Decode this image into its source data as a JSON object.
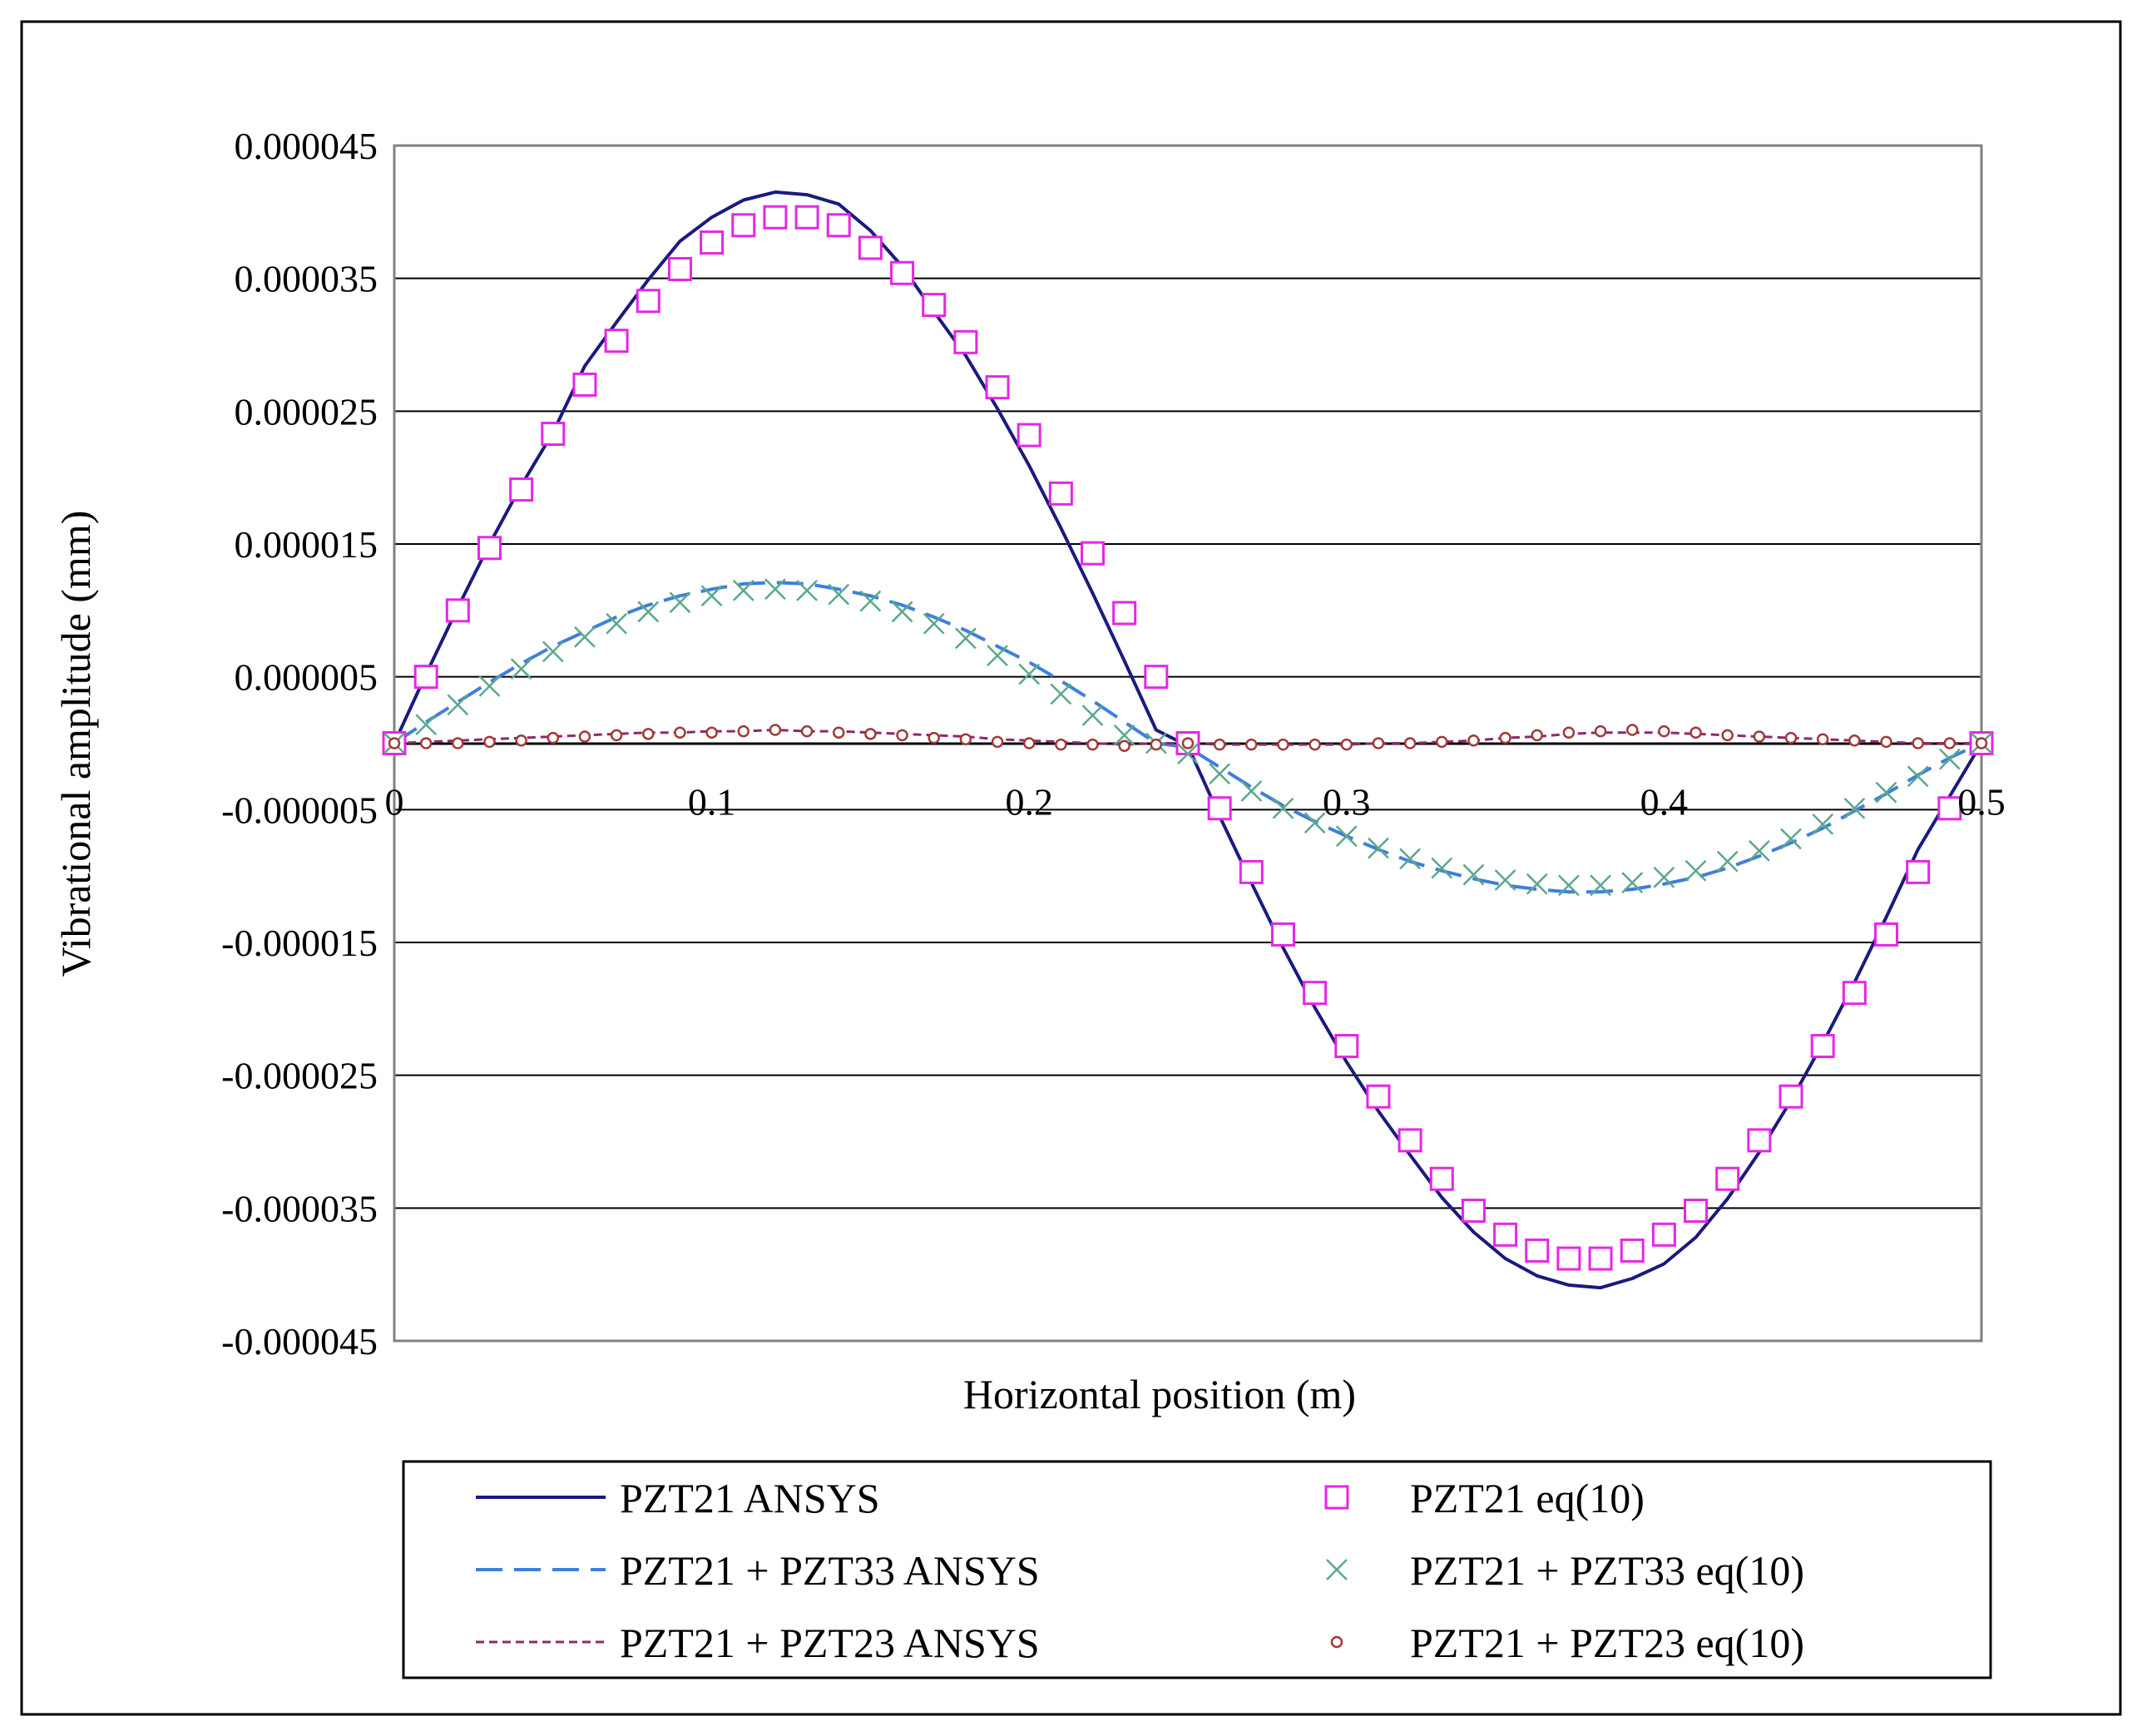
{
  "chart_data": {
    "type": "line",
    "title": "",
    "xlabel": "Horizontal position (m)",
    "ylabel": "Vibrational amplitude (mm)",
    "xlim": [
      0,
      0.5
    ],
    "ylim": [
      -4.5e-05,
      4.5e-05
    ],
    "x_ticks": [
      {
        "value": 0,
        "label": "0"
      },
      {
        "value": 0.1,
        "label": "0.1"
      },
      {
        "value": 0.2,
        "label": "0.2"
      },
      {
        "value": 0.3,
        "label": "0.3"
      },
      {
        "value": 0.4,
        "label": "0.4"
      },
      {
        "value": 0.5,
        "label": "0.5"
      }
    ],
    "y_ticks": [
      {
        "value": 4.5e-05,
        "label": "0.000045"
      },
      {
        "value": 3.5e-05,
        "label": "0.000035"
      },
      {
        "value": 2.5e-05,
        "label": "0.000025"
      },
      {
        "value": 1.5e-05,
        "label": "0.000015"
      },
      {
        "value": 5e-06,
        "label": "0.000005"
      },
      {
        "value": -5e-06,
        "label": "-0.000005"
      },
      {
        "value": -1.5e-05,
        "label": "-0.000015"
      },
      {
        "value": -2.5e-05,
        "label": "-0.000025"
      },
      {
        "value": -3.5e-05,
        "label": "-0.000035"
      },
      {
        "value": -4.5e-05,
        "label": "-0.000045"
      }
    ],
    "grid": "horizontal",
    "legend_position": "bottom",
    "x": [
      0,
      0.01,
      0.02,
      0.03,
      0.04,
      0.05,
      0.06,
      0.07,
      0.08,
      0.09,
      0.1,
      0.11,
      0.12,
      0.13,
      0.14,
      0.15,
      0.16,
      0.17,
      0.18,
      0.19,
      0.2,
      0.21,
      0.22,
      0.23,
      0.24,
      0.25,
      0.26,
      0.27,
      0.28,
      0.29,
      0.3,
      0.31,
      0.32,
      0.33,
      0.34,
      0.35,
      0.36,
      0.37,
      0.38,
      0.39,
      0.4,
      0.41,
      0.42,
      0.43,
      0.44,
      0.45,
      0.46,
      0.47,
      0.48,
      0.49,
      0.5
    ],
    "series": [
      {
        "name": "PZT21 ANSYS",
        "kind": "line",
        "style": "solid",
        "color": "#1a1a7e",
        "values": [
          0,
          5.2e-06,
          1.02e-05,
          1.5e-05,
          1.94e-05,
          2.34e-05,
          2.84e-05,
          3.17e-05,
          3.49e-05,
          3.78e-05,
          3.96e-05,
          4.09e-05,
          4.15e-05,
          4.13e-05,
          4.06e-05,
          3.86e-05,
          3.59e-05,
          3.25e-05,
          2.92e-05,
          2.52e-05,
          2.09e-05,
          1.62e-05,
          1.13e-05,
          6.2e-06,
          1e-06,
          -2e-07,
          -5.5e-06,
          -1.05e-05,
          -1.54e-05,
          -1.99e-05,
          -2.4e-05,
          -2.77e-05,
          -3.1e-05,
          -3.42e-05,
          -3.68e-05,
          -3.88e-05,
          -4.01e-05,
          -4.08e-05,
          -4.1e-05,
          -4.03e-05,
          -3.92e-05,
          -3.72e-05,
          -3.43e-05,
          -3.08e-05,
          -2.69e-05,
          -2.26e-05,
          -1.8e-05,
          -1.31e-05,
          -8e-06,
          -4e-06,
          0
        ]
      },
      {
        "name": "PZT21 eq(10)",
        "kind": "marker",
        "marker": "square",
        "color": "#e626e6",
        "values": [
          0,
          5e-06,
          1e-05,
          1.47e-05,
          1.91e-05,
          2.33e-05,
          2.7e-05,
          3.03e-05,
          3.33e-05,
          3.57e-05,
          3.77e-05,
          3.9e-05,
          3.96e-05,
          3.96e-05,
          3.9e-05,
          3.73e-05,
          3.54e-05,
          3.3e-05,
          3.02e-05,
          2.68e-05,
          2.32e-05,
          1.88e-05,
          1.43e-05,
          9.8e-06,
          5e-06,
          0,
          -4.9e-06,
          -9.7e-06,
          -1.44e-05,
          -1.88e-05,
          -2.28e-05,
          -2.66e-05,
          -2.99e-05,
          -3.28e-05,
          -3.52e-05,
          -3.7e-05,
          -3.82e-05,
          -3.88e-05,
          -3.88e-05,
          -3.82e-05,
          -3.7e-05,
          -3.52e-05,
          -3.28e-05,
          -2.99e-05,
          -2.66e-05,
          -2.28e-05,
          -1.88e-05,
          -1.44e-05,
          -9.7e-06,
          -4.9e-06,
          0
        ]
      },
      {
        "name": "PZT21 + PZT33 ANSYS",
        "kind": "line",
        "style": "dashed",
        "color": "#3f7fdc",
        "values": [
          0,
          1.6e-06,
          3.1e-06,
          4.6e-06,
          6e-06,
          7.3e-06,
          8.4e-06,
          9.5e-06,
          1.04e-05,
          1.11e-05,
          1.16e-05,
          1.2e-05,
          1.21e-05,
          1.2e-05,
          1.16e-05,
          1.11e-05,
          1.04e-05,
          9.5e-06,
          8.5e-06,
          7.3e-06,
          6.1e-06,
          4.7e-06,
          3.2e-06,
          1.6e-06,
          0,
          -3e-07,
          -1.8e-06,
          -3.3e-06,
          -4.7e-06,
          -5.9e-06,
          -7e-06,
          -8e-06,
          -8.9e-06,
          -9.6e-06,
          -1.02e-05,
          -1.07e-05,
          -1.1e-05,
          -1.12e-05,
          -1.12e-05,
          -1.1e-05,
          -1.06e-05,
          -1.01e-05,
          -9.4e-06,
          -8.5e-06,
          -7.5e-06,
          -6.4e-06,
          -5.1e-06,
          -3.8e-06,
          -2.4e-06,
          -1.1e-06,
          0
        ]
      },
      {
        "name": "PZT21 + PZT33 eq(10)",
        "kind": "marker",
        "marker": "cross",
        "color": "#5aa88a",
        "values": [
          0,
          1.4e-06,
          2.9e-06,
          4.3e-06,
          5.6e-06,
          6.9e-06,
          8e-06,
          9e-06,
          9.9e-06,
          1.06e-05,
          1.11e-05,
          1.15e-05,
          1.16e-05,
          1.15e-05,
          1.12e-05,
          1.07e-05,
          9.9e-06,
          9e-06,
          7.9e-06,
          6.6e-06,
          5.2e-06,
          3.7e-06,
          2.1e-06,
          6e-07,
          0,
          -8e-07,
          -2.3e-06,
          -3.6e-06,
          -4.9e-06,
          -6e-06,
          -7e-06,
          -7.9e-06,
          -8.7e-06,
          -9.4e-06,
          -9.9e-06,
          -1.03e-05,
          -1.06e-05,
          -1.07e-05,
          -1.07e-05,
          -1.05e-05,
          -1.01e-05,
          -9.6e-06,
          -8.9e-06,
          -8.1e-06,
          -7.2e-06,
          -6.1e-06,
          -4.9e-06,
          -3.7e-06,
          -2.5e-06,
          -1.2e-06,
          0
        ]
      },
      {
        "name": "PZT21 + PZT23 ANSYS",
        "kind": "line",
        "style": "dotted",
        "color": "#8a2a6e",
        "values": [
          0,
          1e-07,
          2e-07,
          3e-07,
          4e-07,
          5e-07,
          6e-07,
          7e-07,
          8e-07,
          8e-07,
          9e-07,
          9e-07,
          1e-06,
          9e-07,
          9e-07,
          8e-07,
          7e-07,
          6e-07,
          5e-07,
          3e-07,
          2e-07,
          1e-07,
          0,
          -1e-07,
          0,
          0,
          -1e-07,
          -1e-07,
          -1e-07,
          -1e-07,
          -1e-07,
          0,
          0,
          1e-07,
          2e-07,
          4e-07,
          5e-07,
          7e-07,
          8e-07,
          8e-07,
          8e-07,
          7e-07,
          6e-07,
          5e-07,
          4e-07,
          3e-07,
          2e-07,
          1e-07,
          0,
          0,
          0
        ]
      },
      {
        "name": "PZT21 + PZT23 eq(10)",
        "kind": "marker",
        "marker": "circle",
        "color": "#a03a3a",
        "values": [
          0,
          0,
          0,
          1e-07,
          2e-07,
          4e-07,
          5e-07,
          6e-07,
          7e-07,
          8e-07,
          8e-07,
          9e-07,
          1e-06,
          9e-07,
          8e-07,
          7e-07,
          6e-07,
          4e-07,
          3e-07,
          1e-07,
          0,
          -1e-07,
          -1e-07,
          -2e-07,
          -1e-07,
          0,
          -1e-07,
          -1e-07,
          -1e-07,
          -1e-07,
          -1e-07,
          0,
          0,
          1e-07,
          2e-07,
          4e-07,
          6e-07,
          8e-07,
          9e-07,
          1e-06,
          9e-07,
          8e-07,
          6e-07,
          5e-07,
          4e-07,
          3e-07,
          2e-07,
          1e-07,
          0,
          0,
          0
        ]
      }
    ],
    "legend_entries": [
      {
        "series": 0,
        "label": "PZT21 ANSYS"
      },
      {
        "series": 1,
        "label": "PZT21 eq(10)"
      },
      {
        "series": 2,
        "label": "PZT21 + PZT33 ANSYS"
      },
      {
        "series": 3,
        "label": "PZT21 + PZT33 eq(10)"
      },
      {
        "series": 4,
        "label": "PZT21 + PZT23 ANSYS"
      },
      {
        "series": 5,
        "label": "PZT21 + PZT23 eq(10)"
      }
    ]
  }
}
